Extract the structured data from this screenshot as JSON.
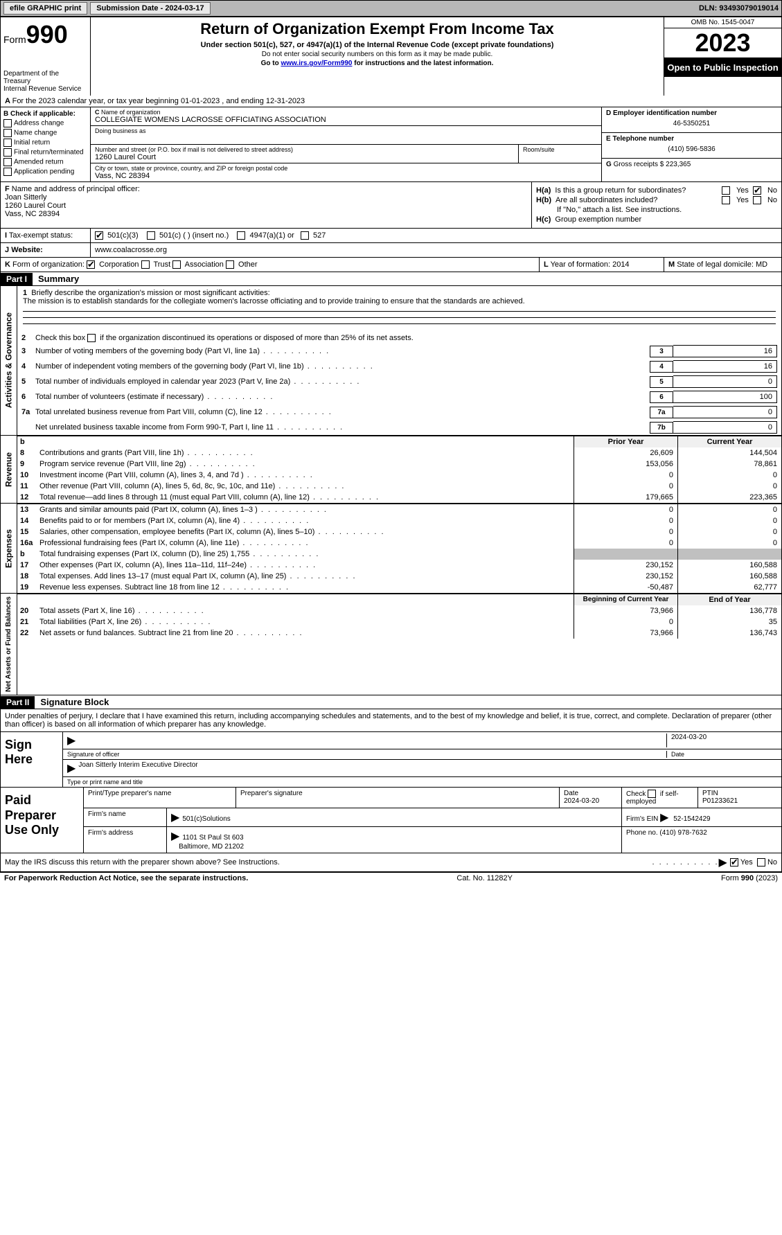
{
  "topbar": {
    "efile": "efile GRAPHIC print",
    "submission_label": "Submission Date - 2024-03-17",
    "dln_label": "DLN: 93493079019014"
  },
  "header": {
    "form_label": "Form",
    "form_number": "990",
    "dept": "Department of the Treasury",
    "irs": "Internal Revenue Service",
    "title": "Return of Organization Exempt From Income Tax",
    "subtitle": "Under section 501(c), 527, or 4947(a)(1) of the Internal Revenue Code (except private foundations)",
    "note1": "Do not enter social security numbers on this form as it may be made public.",
    "note2_pre": "Go to ",
    "note2_link": "www.irs.gov/Form990",
    "note2_post": " for instructions and the latest information.",
    "omb": "OMB No. 1545-0047",
    "year": "2023",
    "open": "Open to Public Inspection"
  },
  "section_a": {
    "text": "For the 2023 calendar year, or tax year beginning 01-01-2023    , and ending 12-31-2023"
  },
  "section_b": {
    "label": "Check if applicable:",
    "items": [
      "Address change",
      "Name change",
      "Initial return",
      "Final return/terminated",
      "Amended return",
      "Application pending"
    ]
  },
  "section_c": {
    "name_label": "Name of organization",
    "name": "COLLEGIATE WOMENS LACROSSE OFFICIATING ASSOCIATION",
    "dba_label": "Doing business as",
    "street_label": "Number and street (or P.O. box if mail is not delivered to street address)",
    "street": "1260 Laurel Court",
    "room_label": "Room/suite",
    "city_label": "City or town, state or province, country, and ZIP or foreign postal code",
    "city": "Vass, NC  28394"
  },
  "section_d": {
    "ein_label": "Employer identification number",
    "ein": "46-5350251",
    "tel_label": "Telephone number",
    "tel": "(410) 596-5836",
    "gross_label": "Gross receipts $",
    "gross": "223,365"
  },
  "section_f": {
    "label": "Name and address of principal officer:",
    "name": "Joan Sitterly",
    "street": "1260 Laurel Court",
    "city": "Vass, NC  28394"
  },
  "section_h": {
    "ha_label": "Is this a group return for subordinates?",
    "hb_label": "Are all subordinates included?",
    "hb_note": "If \"No,\" attach a list. See instructions.",
    "hc_label": "Group exemption number",
    "yes": "Yes",
    "no": "No"
  },
  "section_i": {
    "label": "Tax-exempt status:",
    "opt1": "501(c)(3)",
    "opt2": "501(c) (  ) (insert no.)",
    "opt3": "4947(a)(1) or",
    "opt4": "527"
  },
  "section_j": {
    "label": "Website:",
    "value": "www.coalacrosse.org"
  },
  "section_k": {
    "label": "Form of organization:",
    "opts": [
      "Corporation",
      "Trust",
      "Association",
      "Other"
    ]
  },
  "section_l": {
    "label": "Year of formation:",
    "value": "2014"
  },
  "section_m": {
    "label": "State of legal domicile:",
    "value": "MD"
  },
  "part1": {
    "header": "Part I",
    "title": "Summary",
    "q1_label": "Briefly describe the organization's mission or most significant activities:",
    "q1_text": "The mission is to establish standards for the collegiate women's lacrosse officiating and to provide training to ensure that the standards are achieved.",
    "q2": "Check this box          if the organization discontinued its operations or disposed of more than 25% of its net assets.",
    "lines_governance": [
      {
        "n": "3",
        "t": "Number of voting members of the governing body (Part VI, line 1a)",
        "box": "3",
        "v": "16"
      },
      {
        "n": "4",
        "t": "Number of independent voting members of the governing body (Part VI, line 1b)",
        "box": "4",
        "v": "16"
      },
      {
        "n": "5",
        "t": "Total number of individuals employed in calendar year 2023 (Part V, line 2a)",
        "box": "5",
        "v": "0"
      },
      {
        "n": "6",
        "t": "Total number of volunteers (estimate if necessary)",
        "box": "6",
        "v": "100"
      },
      {
        "n": "7a",
        "t": "Total unrelated business revenue from Part VIII, column (C), line 12",
        "box": "7a",
        "v": "0"
      },
      {
        "n": "",
        "t": "Net unrelated business taxable income from Form 990-T, Part I, line 11",
        "box": "7b",
        "v": "0"
      }
    ],
    "col_head_prior": "Prior Year",
    "col_head_curr": "Current Year",
    "revenue": [
      {
        "n": "8",
        "t": "Contributions and grants (Part VIII, line 1h)",
        "p": "26,609",
        "c": "144,504"
      },
      {
        "n": "9",
        "t": "Program service revenue (Part VIII, line 2g)",
        "p": "153,056",
        "c": "78,861"
      },
      {
        "n": "10",
        "t": "Investment income (Part VIII, column (A), lines 3, 4, and 7d )",
        "p": "0",
        "c": "0"
      },
      {
        "n": "11",
        "t": "Other revenue (Part VIII, column (A), lines 5, 6d, 8c, 9c, 10c, and 11e)",
        "p": "0",
        "c": "0"
      },
      {
        "n": "12",
        "t": "Total revenue—add lines 8 through 11 (must equal Part VIII, column (A), line 12)",
        "p": "179,665",
        "c": "223,365"
      }
    ],
    "expenses": [
      {
        "n": "13",
        "t": "Grants and similar amounts paid (Part IX, column (A), lines 1–3 )",
        "p": "0",
        "c": "0"
      },
      {
        "n": "14",
        "t": "Benefits paid to or for members (Part IX, column (A), line 4)",
        "p": "0",
        "c": "0"
      },
      {
        "n": "15",
        "t": "Salaries, other compensation, employee benefits (Part IX, column (A), lines 5–10)",
        "p": "0",
        "c": "0"
      },
      {
        "n": "16a",
        "t": "Professional fundraising fees (Part IX, column (A), line 11e)",
        "p": "0",
        "c": "0"
      },
      {
        "n": "b",
        "t": "Total fundraising expenses (Part IX, column (D), line 25) 1,755",
        "p": "",
        "c": "",
        "shaded": true
      },
      {
        "n": "17",
        "t": "Other expenses (Part IX, column (A), lines 11a–11d, 11f–24e)",
        "p": "230,152",
        "c": "160,588"
      },
      {
        "n": "18",
        "t": "Total expenses. Add lines 13–17 (must equal Part IX, column (A), line 25)",
        "p": "230,152",
        "c": "160,588"
      },
      {
        "n": "19",
        "t": "Revenue less expenses. Subtract line 18 from line 12",
        "p": "-50,487",
        "c": "62,777"
      }
    ],
    "col_head_begin": "Beginning of Current Year",
    "col_head_end": "End of Year",
    "netassets": [
      {
        "n": "20",
        "t": "Total assets (Part X, line 16)",
        "p": "73,966",
        "c": "136,778"
      },
      {
        "n": "21",
        "t": "Total liabilities (Part X, line 26)",
        "p": "0",
        "c": "35"
      },
      {
        "n": "22",
        "t": "Net assets or fund balances. Subtract line 21 from line 20",
        "p": "73,966",
        "c": "136,743"
      }
    ],
    "vtab_gov": "Activities & Governance",
    "vtab_rev": "Revenue",
    "vtab_exp": "Expenses",
    "vtab_net": "Net Assets or Fund Balances"
  },
  "part2": {
    "header": "Part II",
    "title": "Signature Block",
    "declaration": "Under penalties of perjury, I declare that I have examined this return, including accompanying schedules and statements, and to the best of my knowledge and belief, it is true, correct, and complete. Declaration of preparer (other than officer) is based on all information of which preparer has any knowledge."
  },
  "sign": {
    "left": "Sign Here",
    "sig_label": "Signature of officer",
    "date_label": "Date",
    "date_val": "2024-03-20",
    "officer": "Joan Sitterly  Interim Executive Director",
    "type_label": "Type or print name and title"
  },
  "paid": {
    "left": "Paid Preparer Use Only",
    "name_label": "Print/Type preparer's name",
    "sig_label": "Preparer's signature",
    "date_label": "Date",
    "date_val": "2024-03-20",
    "check_label": "Check         if self-employed",
    "ptin_label": "PTIN",
    "ptin": "P01233621",
    "firm_name_label": "Firm's name",
    "firm_name": "501(c)Solutions",
    "firm_ein_label": "Firm's EIN",
    "firm_ein": "52-1542429",
    "firm_addr_label": "Firm's address",
    "firm_addr1": "1101 St Paul St 603",
    "firm_addr2": "Baltimore, MD  21202",
    "phone_label": "Phone no.",
    "phone": "(410) 978-7632"
  },
  "discuss": {
    "text": "May the IRS discuss this return with the preparer shown above? See Instructions.",
    "yes": "Yes",
    "no": "No"
  },
  "footer": {
    "left": "For Paperwork Reduction Act Notice, see the separate instructions.",
    "mid": "Cat. No. 11282Y",
    "right": "Form 990 (2023)"
  }
}
